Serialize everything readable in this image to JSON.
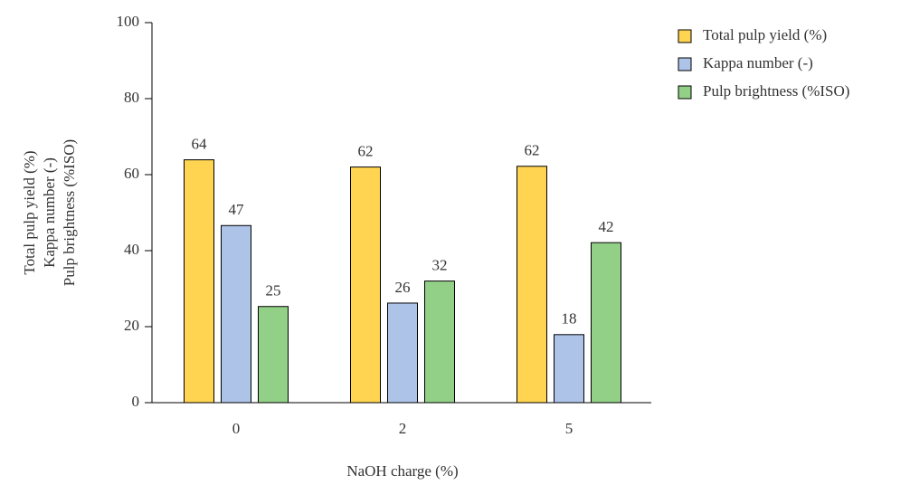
{
  "chart_data": {
    "type": "bar",
    "categories": [
      "0",
      "2",
      "5"
    ],
    "series": [
      {
        "name": "Total pulp yield (%)",
        "color": "#ffd451",
        "values": [
          63.9,
          62,
          62.2
        ],
        "value_labels": [
          "64",
          "62",
          "62"
        ]
      },
      {
        "name": "Kappa number (-)",
        "color": "#adc3e8",
        "values": [
          46.6,
          26.2,
          17.9
        ],
        "value_labels": [
          "47",
          "26",
          "18"
        ]
      },
      {
        "name": "Pulp brightness (%ISO)",
        "color": "#92d087",
        "values": [
          25.3,
          32,
          42.1
        ],
        "value_labels": [
          "25",
          "32",
          "42"
        ]
      }
    ],
    "x_label": "NaOH charge (%)",
    "y_label": [
      "Total pulp yield (%)",
      "Kappa number (-)",
      "Pulp brightness (%ISO)"
    ],
    "ylim": [
      0,
      100
    ],
    "yticks": [
      0,
      20,
      40,
      60,
      80,
      100
    ],
    "legend": "right"
  }
}
